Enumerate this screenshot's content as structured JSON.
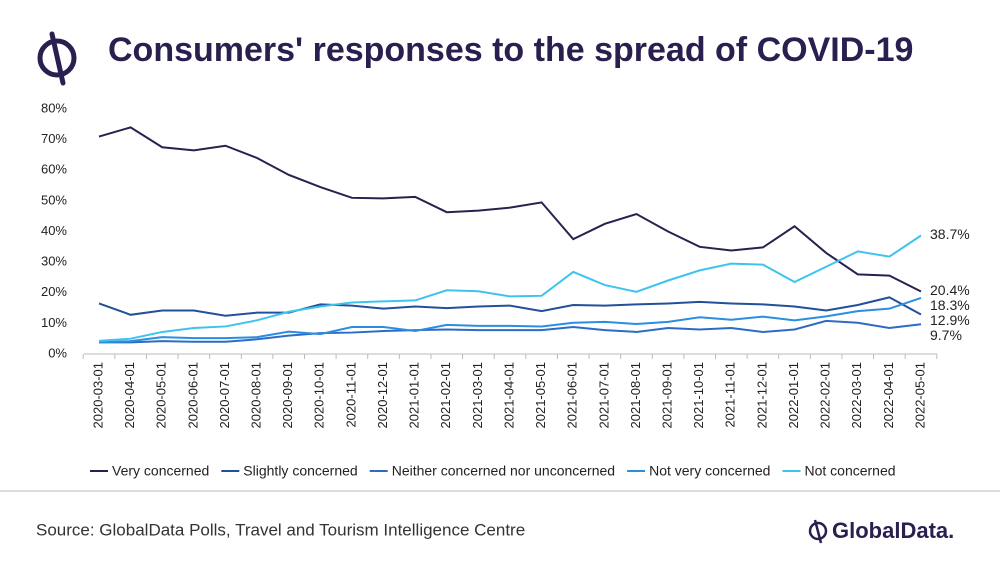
{
  "chart_data": {
    "type": "line",
    "title": "Consumers' responses to the spread of COVID-19",
    "source": "Source: GlobalData Polls, Travel and Tourism Intelligence Centre",
    "brand": "GlobalData.",
    "categories": [
      "2020-03-01",
      "2020-04-01",
      "2020-05-01",
      "2020-06-01",
      "2020-07-01",
      "2020-08-01",
      "2020-09-01",
      "2020-10-01",
      "2020-11-01",
      "2020-12-01",
      "2021-01-01",
      "2021-02-01",
      "2021-03-01",
      "2021-04-01",
      "2021-05-01",
      "2021-06-01",
      "2021-07-01",
      "2021-08-01",
      "2021-09-01",
      "2021-10-01",
      "2021-11-01",
      "2021-12-01",
      "2022-01-01",
      "2022-02-01",
      "2022-03-01",
      "2022-04-01",
      "2022-05-01"
    ],
    "ylim": [
      0,
      80
    ],
    "yticks": [
      {
        "value": 0,
        "label": "0%"
      },
      {
        "value": 10,
        "label": "10%"
      },
      {
        "value": 20,
        "label": "20%"
      },
      {
        "value": 30,
        "label": "30%"
      },
      {
        "value": 40,
        "label": "40%"
      },
      {
        "value": 50,
        "label": "50%"
      },
      {
        "value": 60,
        "label": "60%"
      },
      {
        "value": 70,
        "label": "70%"
      },
      {
        "value": 80,
        "label": "80%"
      }
    ],
    "grid": false,
    "legend": "bottom",
    "series": [
      {
        "name": "Very concerned",
        "color": "#2a1f4f",
        "values": [
          71,
          74,
          67.5,
          66.5,
          68,
          64,
          58.5,
          54.5,
          51,
          50.8,
          51.3,
          46.3,
          46.8,
          47.8,
          49.5,
          37.5,
          42.5,
          45.7,
          40,
          35,
          33.8,
          34.8,
          41.7,
          33,
          26,
          25.6,
          20.4
        ],
        "value_labels": [
          null,
          null,
          null,
          null,
          null,
          null,
          null,
          null,
          null,
          null,
          null,
          null,
          null,
          null,
          null,
          null,
          null,
          null,
          null,
          null,
          null,
          null,
          null,
          null,
          null,
          null,
          "20.4%"
        ]
      },
      {
        "name": "Slightly concerned",
        "color": "#23509a",
        "values": [
          16.5,
          12.8,
          14.2,
          14.2,
          12.5,
          13.5,
          13.5,
          16.2,
          15.8,
          14.8,
          15.5,
          15,
          15.5,
          15.8,
          14,
          16,
          15.8,
          16.2,
          16.5,
          17,
          16.5,
          16.2,
          15.5,
          14.2,
          16,
          18.5,
          12.9
        ],
        "value_labels": [
          null,
          null,
          null,
          null,
          null,
          null,
          null,
          null,
          null,
          null,
          null,
          null,
          null,
          null,
          null,
          null,
          null,
          null,
          null,
          null,
          null,
          null,
          null,
          null,
          null,
          null,
          "12.9%"
        ]
      },
      {
        "name": "Neither concerned nor unconcerned",
        "color": "#2d6cc4",
        "values": [
          3.8,
          3.8,
          4.2,
          4,
          4,
          4.8,
          6,
          6.8,
          7,
          7.5,
          7.8,
          8,
          7.8,
          7.8,
          7.8,
          8.8,
          7.8,
          7.2,
          8.5,
          8,
          8.5,
          7.2,
          8,
          10.8,
          10.2,
          8.5,
          9.7
        ],
        "value_labels": [
          null,
          null,
          null,
          null,
          null,
          null,
          null,
          null,
          null,
          null,
          null,
          null,
          null,
          null,
          null,
          null,
          null,
          null,
          null,
          null,
          null,
          null,
          null,
          null,
          null,
          null,
          "9.7%"
        ]
      },
      {
        "name": "Not very concerned",
        "color": "#2b8ee0",
        "values": [
          3.8,
          4.2,
          5.5,
          5.2,
          5.2,
          5.5,
          7.3,
          6.5,
          8.8,
          8.8,
          7.5,
          9.5,
          9.2,
          9.2,
          9,
          10.2,
          10.5,
          9.8,
          10.5,
          12,
          11.2,
          12.2,
          11,
          12.3,
          14,
          14.8,
          18.3
        ],
        "value_labels": [
          null,
          null,
          null,
          null,
          null,
          null,
          null,
          null,
          null,
          null,
          null,
          null,
          null,
          null,
          null,
          null,
          null,
          null,
          null,
          null,
          null,
          null,
          null,
          null,
          null,
          null,
          "18.3%"
        ]
      },
      {
        "name": "Not concerned",
        "color": "#3ec3f0",
        "values": [
          4.3,
          5,
          7.2,
          8.5,
          9,
          11,
          13.8,
          15.5,
          16.8,
          17.2,
          17.5,
          20.8,
          20.5,
          18.8,
          19,
          26.8,
          22.5,
          20.3,
          24,
          27.3,
          29.5,
          29.2,
          23.5,
          28.5,
          33.5,
          31.8,
          38.7
        ],
        "value_labels": [
          null,
          null,
          null,
          null,
          null,
          null,
          null,
          null,
          null,
          null,
          null,
          null,
          null,
          null,
          null,
          null,
          null,
          null,
          null,
          null,
          null,
          null,
          null,
          null,
          null,
          null,
          "38.7%"
        ]
      }
    ]
  }
}
